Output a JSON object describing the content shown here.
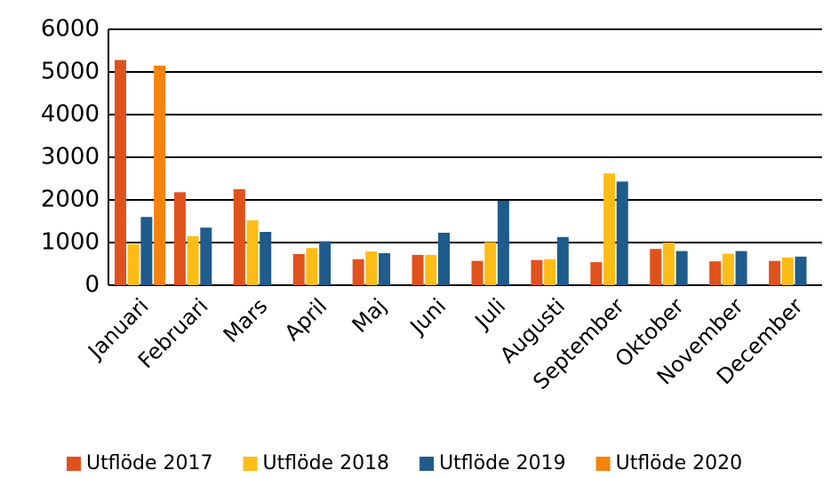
{
  "chart_data": {
    "type": "bar",
    "categories": [
      "Januari",
      "Februari",
      "Mars",
      "April",
      "Maj",
      "Juni",
      "Juli",
      "Augusti",
      "September",
      "Oktober",
      "November",
      "December"
    ],
    "series": [
      {
        "name": "Utflöde 2017",
        "color": "#e0521c",
        "values": [
          5280,
          2180,
          2250,
          730,
          610,
          710,
          570,
          590,
          540,
          850,
          560,
          570
        ]
      },
      {
        "name": "Utflöde 2018",
        "color": "#fdbd16",
        "values": [
          960,
          1150,
          1520,
          870,
          790,
          710,
          1010,
          610,
          2620,
          1000,
          740,
          650
        ]
      },
      {
        "name": "Utflöde 2019",
        "color": "#1f5b8b",
        "values": [
          1600,
          1350,
          1250,
          1030,
          750,
          1230,
          1980,
          1130,
          2430,
          800,
          800,
          670
        ]
      },
      {
        "name": "Utflöde 2020",
        "color": "#f5840c",
        "values": [
          5150,
          null,
          null,
          null,
          null,
          null,
          null,
          null,
          null,
          null,
          null,
          null
        ]
      }
    ],
    "ylim": [
      0,
      6000
    ],
    "yticks": [
      0,
      1000,
      2000,
      3000,
      4000,
      5000,
      6000
    ],
    "grid": true,
    "legend": "bottom"
  }
}
